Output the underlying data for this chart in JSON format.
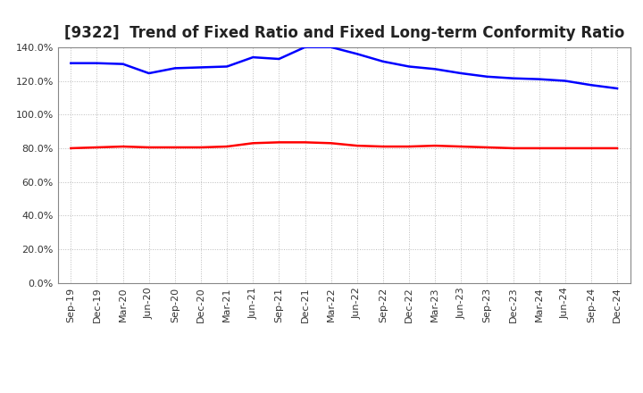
{
  "title": "[9322]  Trend of Fixed Ratio and Fixed Long-term Conformity Ratio",
  "x_labels": [
    "Sep-19",
    "Dec-19",
    "Mar-20",
    "Jun-20",
    "Sep-20",
    "Dec-20",
    "Mar-21",
    "Jun-21",
    "Sep-21",
    "Dec-21",
    "Mar-22",
    "Jun-22",
    "Sep-22",
    "Dec-22",
    "Mar-23",
    "Jun-23",
    "Sep-23",
    "Dec-23",
    "Mar-24",
    "Jun-24",
    "Sep-24",
    "Dec-24"
  ],
  "fixed_ratio": [
    130.5,
    130.5,
    130.0,
    124.5,
    127.5,
    128.0,
    128.5,
    134.0,
    133.0,
    140.0,
    140.0,
    136.0,
    131.5,
    128.5,
    127.0,
    124.5,
    122.5,
    121.5,
    121.0,
    120.0,
    117.5,
    115.5
  ],
  "fixed_lt_ratio": [
    80.0,
    80.5,
    81.0,
    80.5,
    80.5,
    80.5,
    81.0,
    83.0,
    83.5,
    83.5,
    83.0,
    81.5,
    81.0,
    81.0,
    81.5,
    81.0,
    80.5,
    80.0,
    80.0,
    80.0,
    80.0,
    80.0
  ],
  "fixed_ratio_color": "#0000ff",
  "fixed_lt_ratio_color": "#ff0000",
  "ylim": [
    0,
    140
  ],
  "yticks": [
    0,
    20,
    40,
    60,
    80,
    100,
    120,
    140
  ],
  "background_color": "#ffffff",
  "plot_bg_color": "#ffffff",
  "grid_color": "#bbbbbb",
  "title_fontsize": 12,
  "axis_fontsize": 8,
  "legend_fontsize": 9,
  "line_width": 1.8
}
